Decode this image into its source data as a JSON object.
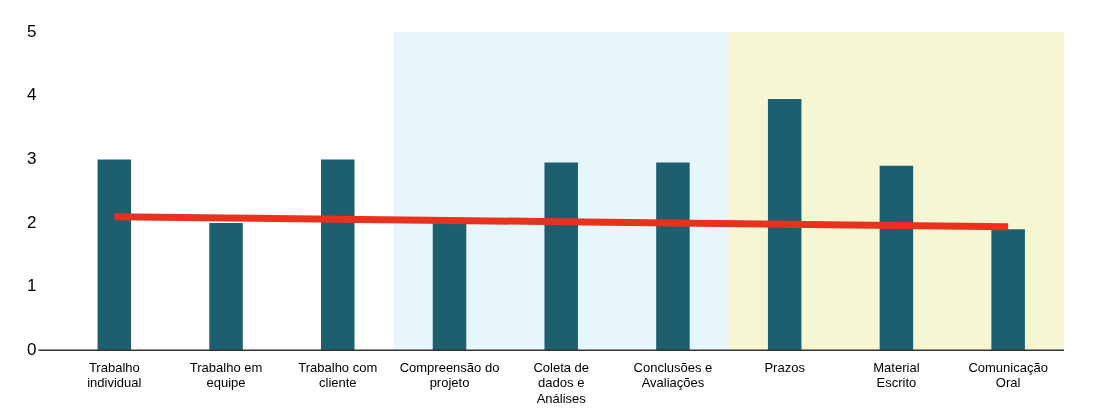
{
  "chart_data": {
    "type": "bar",
    "categories": [
      "Trabalho individual",
      "Trabalho em equipe",
      "Trabalho com cliente",
      "Compreensão do projeto",
      "Coleta de dados e Análises",
      "Conclusões e Avaliações",
      "Prazos",
      "Material Escrito",
      "Comunicação Oral"
    ],
    "series": [
      {
        "color": "#1d5f6e",
        "values": [
          3,
          2,
          3,
          2,
          2.95,
          2.95,
          3.95,
          2.9,
          1.9
        ]
      },
      {
        "type": "line",
        "color": "#e8321e",
        "values": [
          2.1,
          2.08,
          2.06,
          2.04,
          2.02,
          2.0,
          1.98,
          1.96,
          1.94
        ]
      }
    ],
    "bands": [
      {
        "axis": "x",
        "from": "Compreensão do projeto",
        "to": "Conclusões e Avaliações",
        "color": "#e6f6fb"
      },
      {
        "axis": "x",
        "from": "Prazos",
        "to": "Comunicação Oral",
        "color": "#f6f7d2"
      }
    ],
    "ylim": [
      0,
      5
    ],
    "yticks": [
      0,
      1,
      2,
      3,
      4,
      5
    ],
    "legend": false
  }
}
